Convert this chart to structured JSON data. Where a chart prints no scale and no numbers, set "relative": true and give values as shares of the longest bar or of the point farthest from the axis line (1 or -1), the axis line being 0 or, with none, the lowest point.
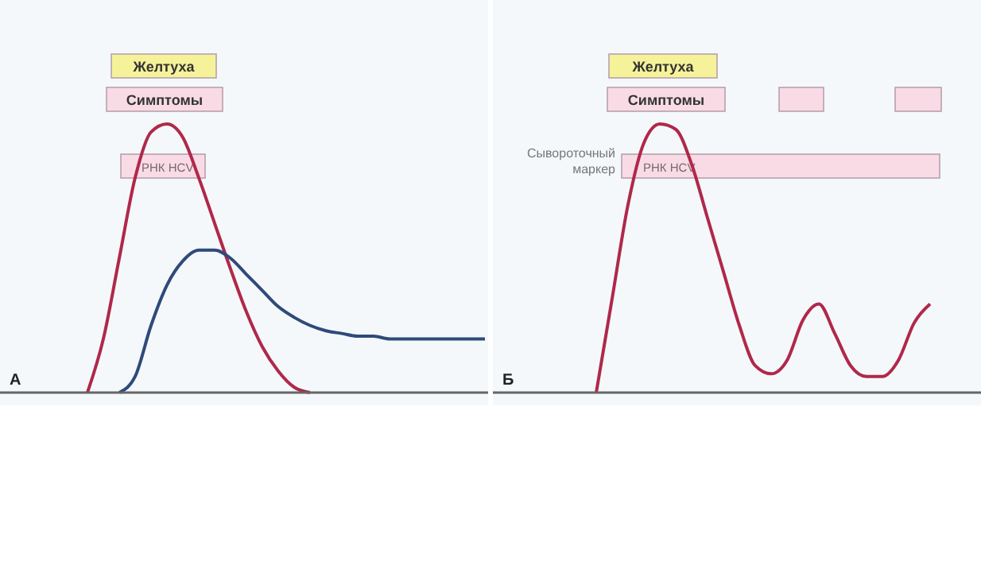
{
  "chart_data": [
    {
      "type": "line",
      "title": "А",
      "relative": true,
      "categories": [
        null,
        null,
        null,
        null,
        null,
        null,
        null,
        null,
        null,
        null,
        null,
        null,
        null,
        null,
        null,
        null,
        null,
        null,
        null,
        null,
        null,
        null,
        null,
        null,
        null,
        null,
        null,
        null,
        null,
        null,
        null
      ],
      "series": [
        {
          "color": "#b0284a",
          "values": [
            null,
            null,
            null,
            null,
            null,
            0,
            0.2,
            0.5,
            0.8,
            0.97,
            1,
            0.95,
            0.8,
            0.63,
            0.46,
            0.3,
            0.17,
            0.08,
            0.02,
            0,
            null,
            null,
            null,
            null,
            null,
            null,
            null,
            null,
            null,
            null,
            null
          ]
        },
        {
          "color": "#2f4a7a",
          "values": [
            null,
            null,
            null,
            null,
            null,
            null,
            null,
            0,
            0.06,
            0.25,
            0.4,
            0.49,
            0.53,
            0.53,
            0.5,
            0.44,
            0.38,
            0.32,
            0.28,
            0.25,
            0.23,
            0.22,
            0.21,
            0.21,
            0.2,
            0.2,
            0.2,
            0.2,
            0.2,
            0.2,
            0.2
          ]
        }
      ],
      "annotations": [
        "Желтуха",
        "Симптомы",
        "РНК HCV"
      ]
    },
    {
      "type": "line",
      "title": "Б",
      "relative": true,
      "categories": [
        null,
        null,
        null,
        null,
        null,
        null,
        null,
        null,
        null,
        null,
        null,
        null,
        null,
        null,
        null,
        null,
        null,
        null,
        null,
        null,
        null,
        null,
        null,
        null,
        null,
        null,
        null,
        null,
        null,
        null,
        null
      ],
      "series": [
        {
          "color": "#b0284a",
          "values": [
            null,
            null,
            null,
            null,
            null,
            null,
            0,
            0.35,
            0.7,
            0.93,
            1,
            0.98,
            0.85,
            0.65,
            0.45,
            0.25,
            0.1,
            0.07,
            0.12,
            0.27,
            0.33,
            0.22,
            0.1,
            0.06,
            0.06,
            0.12,
            0.26,
            0.33,
            null,
            null,
            null
          ]
        }
      ],
      "annotations": [
        "Желтуха",
        "Симптомы",
        "РНК HCV",
        "Сывороточный маркер"
      ]
    }
  ]
}
